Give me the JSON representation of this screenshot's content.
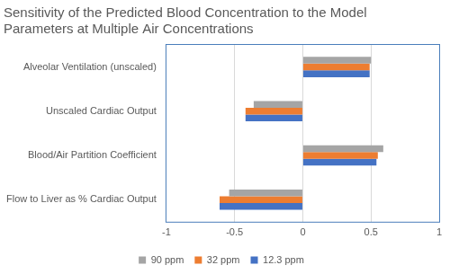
{
  "chart_data": {
    "type": "bar",
    "title": [
      "Sensitivity of the Predicted Blood Concentration to the Model",
      "Parameters at Multiple Air Concentrations"
    ],
    "orientation": "horizontal",
    "categories": [
      "Alveolar Ventilation (unscaled)",
      "Unscaled Cardiac Output",
      "Blood/Air Partition Coefficient",
      "Flow to Liver as % Cardiac Output"
    ],
    "series": [
      {
        "name": "90 ppm",
        "color": "#a5a5a5",
        "values": [
          0.5,
          -0.36,
          0.59,
          -0.54
        ]
      },
      {
        "name": "32 ppm",
        "color": "#ed7d31",
        "values": [
          0.49,
          -0.42,
          0.55,
          -0.61
        ]
      },
      {
        "name": "12.3 ppm",
        "color": "#4472c4",
        "values": [
          0.49,
          -0.42,
          0.54,
          -0.61
        ]
      }
    ],
    "xlim": [
      -1,
      1
    ],
    "xticks": [
      -1,
      -0.5,
      0,
      0.5,
      1
    ],
    "grid": true,
    "legend": "bottom"
  }
}
